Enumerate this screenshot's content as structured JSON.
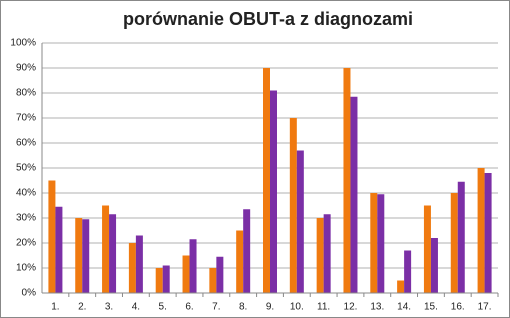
{
  "chart_data": {
    "type": "bar",
    "title": "porównanie OBUT-a z diagnozami",
    "categories": [
      "1.",
      "2.",
      "3.",
      "4.",
      "5.",
      "6.",
      "7.",
      "8.",
      "9.",
      "10.",
      "11.",
      "12.",
      "13.",
      "14.",
      "15.",
      "16.",
      "17."
    ],
    "series": [
      {
        "color": "#f07a10",
        "values": [
          45,
          30,
          35,
          20,
          10,
          15,
          10,
          25,
          90,
          70,
          30,
          90,
          40,
          5,
          35,
          40,
          50
        ]
      },
      {
        "color": "#7b2fa6",
        "values": [
          34.5,
          29.5,
          31.5,
          23,
          11,
          21.5,
          14.5,
          33.5,
          81,
          57,
          31.5,
          78.5,
          39.5,
          17,
          22,
          44.5,
          48
        ]
      }
    ],
    "ylim": [
      0,
      100
    ],
    "yticks": [
      {
        "value": 0,
        "label": "0%"
      },
      {
        "value": 10,
        "label": "10%"
      },
      {
        "value": 20,
        "label": "20%"
      },
      {
        "value": 30,
        "label": "30%"
      },
      {
        "value": 40,
        "label": "40%"
      },
      {
        "value": 50,
        "label": "50%"
      },
      {
        "value": 60,
        "label": "60%"
      },
      {
        "value": 70,
        "label": "70%"
      },
      {
        "value": 80,
        "label": "80%"
      },
      {
        "value": 90,
        "label": "90%"
      },
      {
        "value": 100,
        "label": "100%"
      }
    ],
    "grid": true
  }
}
